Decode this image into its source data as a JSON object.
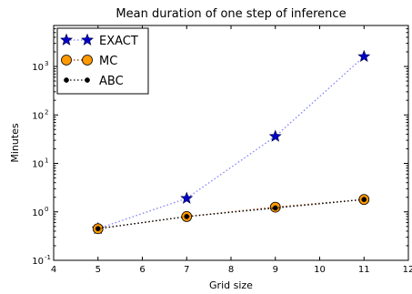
{
  "chart_data": {
    "type": "line",
    "title": "Mean duration of one step of inference",
    "xlabel": "Grid size",
    "ylabel": "Minutes",
    "xlim": [
      4,
      12
    ],
    "ylim": [
      0.1,
      7000
    ],
    "yscale": "log",
    "grid": false,
    "legend_position": "top-left",
    "x_ticks": [
      4,
      5,
      6,
      7,
      8,
      9,
      10,
      11,
      12
    ],
    "x_tick_labels": [
      "4",
      "5",
      "6",
      "7",
      "8",
      "9",
      "10",
      "11",
      "12"
    ],
    "y_ticks": [
      0.1,
      1,
      10,
      100,
      1000
    ],
    "y_tick_labels": [
      {
        "base": "10",
        "exp": "-1"
      },
      {
        "base": "10",
        "exp": "0"
      },
      {
        "base": "10",
        "exp": "1"
      },
      {
        "base": "10",
        "exp": "2"
      },
      {
        "base": "10",
        "exp": "3"
      }
    ],
    "series": [
      {
        "name": "EXACT",
        "x": [
          5,
          7,
          9,
          11
        ],
        "y": [
          0.45,
          1.9,
          36,
          1600
        ],
        "marker": "star",
        "line_color": "#8080ff",
        "marker_color": "#0000cc"
      },
      {
        "name": "MC",
        "x": [
          5,
          7,
          9,
          11
        ],
        "y": [
          0.45,
          0.8,
          1.25,
          1.8
        ],
        "marker": "circle",
        "line_color": "#993300",
        "marker_color": "#ff9900"
      },
      {
        "name": "ABC",
        "x": [
          5,
          7,
          9,
          11
        ],
        "y": [
          0.45,
          0.8,
          1.2,
          1.8
        ],
        "marker": "dot",
        "line_color": "#000000",
        "marker_color": "#000000"
      }
    ]
  }
}
